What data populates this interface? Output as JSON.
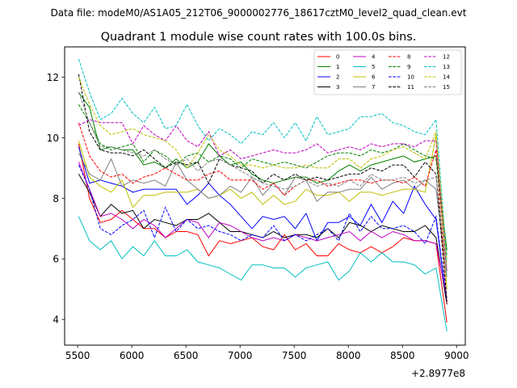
{
  "suptitle": "Data file: modeM0/AS1A05_212T06_9000002776_18617cztM0_level2_quad_clean.evt",
  "chart_data": {
    "type": "line",
    "title": "Quadrant 1 module wise count rates with 100.0s bins.",
    "xlabel": "",
    "ylabel": "",
    "x_offset_label": "+2.8977e8",
    "xlim": [
      5380,
      9080
    ],
    "ylim": [
      3.15,
      13.0
    ],
    "xticks": [
      5500,
      6000,
      6500,
      7000,
      7500,
      8000,
      8500,
      9000
    ],
    "yticks": [
      4,
      6,
      8,
      10,
      12
    ],
    "grid": false,
    "legend": {
      "placement": "top-right",
      "ncol": 4
    },
    "x": [
      5510,
      5610,
      5710,
      5810,
      5910,
      6010,
      6110,
      6210,
      6310,
      6410,
      6510,
      6610,
      6710,
      6810,
      6910,
      7010,
      7110,
      7210,
      7310,
      7410,
      7510,
      7610,
      7710,
      7810,
      7910,
      8010,
      8110,
      8210,
      8310,
      8410,
      8510,
      8610,
      8710,
      8810,
      8910
    ],
    "series": [
      {
        "name": "0",
        "color": "#ff0000",
        "dash": "solid",
        "values": [
          9.8,
          8.0,
          7.2,
          7.3,
          7.6,
          7.3,
          7.0,
          7.0,
          6.7,
          6.9,
          6.9,
          6.8,
          6.1,
          6.6,
          6.5,
          6.6,
          6.7,
          6.4,
          6.3,
          6.8,
          6.3,
          6.5,
          6.1,
          6.1,
          6.5,
          6.3,
          6.2,
          6.4,
          6.2,
          6.4,
          6.7,
          6.6,
          6.6,
          6.5,
          3.9
        ]
      },
      {
        "name": "1",
        "color": "#008000",
        "dash": "solid",
        "values": [
          11.5,
          11.0,
          9.6,
          9.7,
          9.6,
          9.6,
          9.1,
          9.2,
          9.0,
          9.3,
          9.0,
          9.2,
          9.8,
          9.4,
          9.1,
          9.2,
          8.8,
          8.6,
          8.5,
          8.6,
          8.7,
          8.7,
          8.5,
          8.6,
          8.9,
          9.1,
          8.9,
          9.1,
          9.2,
          9.3,
          9.4,
          9.2,
          9.3,
          9.4,
          6.3
        ]
      },
      {
        "name": "2",
        "color": "#0000ff",
        "dash": "solid",
        "values": [
          9.7,
          8.5,
          8.6,
          8.5,
          8.4,
          8.2,
          8.3,
          8.3,
          8.3,
          8.3,
          7.8,
          8.1,
          8.5,
          8.1,
          7.8,
          7.4,
          7.0,
          7.4,
          7.3,
          7.4,
          7.0,
          7.5,
          6.6,
          7.2,
          7.2,
          7.4,
          7.1,
          7.8,
          7.2,
          7.9,
          7.5,
          8.4,
          7.8,
          7.3,
          4.5
        ]
      },
      {
        "name": "3",
        "color": "#000000",
        "dash": "solid",
        "values": [
          8.8,
          8.2,
          7.4,
          7.8,
          7.5,
          7.6,
          7.0,
          7.3,
          7.2,
          7.1,
          7.3,
          7.3,
          7.5,
          7.2,
          6.9,
          6.9,
          6.8,
          6.7,
          6.9,
          6.7,
          6.8,
          6.8,
          6.7,
          7.0,
          6.7,
          7.2,
          7.1,
          6.9,
          7.1,
          7.0,
          6.9,
          6.9,
          7.1,
          6.7,
          4.5
        ]
      },
      {
        "name": "4",
        "color": "#bf00bf",
        "dash": "solid",
        "values": [
          9.2,
          8.3,
          7.4,
          7.5,
          7.3,
          7.0,
          7.3,
          7.1,
          6.7,
          7.0,
          7.3,
          7.2,
          6.7,
          7.2,
          7.1,
          6.9,
          6.7,
          6.6,
          6.7,
          6.6,
          6.8,
          6.7,
          6.6,
          6.7,
          6.8,
          6.9,
          6.6,
          6.9,
          6.7,
          6.9,
          6.8,
          6.6,
          6.6,
          6.5,
          4.7
        ]
      },
      {
        "name": "5",
        "color": "#00bfbf",
        "dash": "solid",
        "values": [
          7.4,
          6.6,
          6.3,
          6.6,
          6.0,
          6.4,
          6.1,
          6.6,
          6.1,
          6.1,
          6.3,
          5.9,
          5.8,
          5.7,
          5.5,
          5.3,
          5.8,
          5.8,
          5.7,
          5.7,
          5.4,
          5.7,
          5.8,
          5.9,
          5.3,
          5.6,
          6.2,
          5.9,
          6.2,
          5.9,
          5.9,
          5.8,
          5.5,
          5.7,
          3.6
        ]
      },
      {
        "name": "6",
        "color": "#bfbf00",
        "dash": "solid",
        "values": [
          9.9,
          8.7,
          8.4,
          8.2,
          8.6,
          7.7,
          8.1,
          8.1,
          8.2,
          8.2,
          8.2,
          8.3,
          8.0,
          8.1,
          8.3,
          8.0,
          8.2,
          7.8,
          8.1,
          7.8,
          7.9,
          8.3,
          8.1,
          8.1,
          8.2,
          7.9,
          8.2,
          8.2,
          8.1,
          8.2,
          8.3,
          8.3,
          8.2,
          10.1,
          5.0
        ]
      },
      {
        "name": "7",
        "color": "#808080",
        "dash": "solid",
        "values": [
          9.5,
          8.8,
          8.6,
          9.3,
          8.4,
          8.6,
          8.5,
          8.6,
          8.4,
          9.2,
          8.6,
          8.3,
          8.0,
          8.1,
          8.4,
          8.2,
          8.7,
          8.1,
          8.5,
          8.1,
          8.7,
          8.6,
          7.9,
          8.2,
          8.2,
          8.3,
          8.3,
          8.7,
          8.3,
          8.5,
          8.6,
          8.3,
          8.6,
          8.3,
          5.4
        ]
      },
      {
        "name": "8",
        "color": "#ff0000",
        "dash": "dashed",
        "values": [
          10.5,
          9.4,
          8.9,
          8.7,
          8.8,
          8.5,
          8.7,
          8.8,
          9.0,
          8.8,
          8.6,
          8.6,
          8.8,
          8.9,
          8.6,
          8.6,
          8.6,
          8.3,
          8.5,
          8.1,
          8.4,
          8.6,
          8.6,
          8.4,
          8.5,
          8.6,
          8.6,
          8.5,
          8.6,
          8.6,
          8.5,
          8.7,
          8.4,
          9.6,
          4.5
        ]
      },
      {
        "name": "9",
        "color": "#008000",
        "dash": "dashed",
        "values": [
          11.1,
          10.5,
          9.8,
          9.6,
          9.7,
          9.8,
          9.2,
          9.6,
          9.4,
          9.1,
          9.4,
          9.5,
          9.2,
          9.4,
          9.3,
          9.0,
          9.3,
          9.2,
          9.1,
          9.2,
          9.1,
          9.0,
          9.2,
          9.4,
          9.5,
          9.5,
          9.4,
          9.6,
          9.5,
          9.6,
          9.8,
          9.6,
          9.4,
          9.3,
          6.1
        ]
      },
      {
        "name": "10",
        "color": "#0000ff",
        "dash": "dashed",
        "values": [
          9.1,
          8.3,
          7.0,
          6.8,
          7.1,
          7.3,
          7.6,
          6.7,
          7.7,
          6.9,
          7.3,
          7.0,
          7.1,
          6.9,
          6.8,
          6.6,
          6.8,
          6.7,
          7.1,
          6.6,
          6.8,
          6.6,
          6.8,
          7.0,
          6.6,
          7.5,
          6.9,
          7.4,
          7.0,
          7.0,
          7.1,
          6.9,
          6.5,
          7.4,
          4.6
        ]
      },
      {
        "name": "11",
        "color": "#000000",
        "dash": "dashed",
        "values": [
          12.1,
          10.2,
          9.6,
          9.5,
          9.5,
          9.4,
          9.6,
          9.3,
          9.0,
          9.2,
          9.1,
          9.2,
          8.5,
          9.3,
          9.1,
          9.0,
          8.9,
          8.5,
          8.8,
          8.6,
          8.8,
          8.6,
          8.7,
          8.6,
          8.7,
          8.8,
          8.8,
          9.0,
          8.9,
          9.1,
          9.1,
          8.7,
          9.2,
          8.8,
          4.6
        ]
      },
      {
        "name": "12",
        "color": "#bf00bf",
        "dash": "dashed",
        "values": [
          10.4,
          10.6,
          10.5,
          10.5,
          10.5,
          9.8,
          10.4,
          10.1,
          9.9,
          10.4,
          9.9,
          9.7,
          10.2,
          9.4,
          9.6,
          9.3,
          9.4,
          9.5,
          9.6,
          9.5,
          9.5,
          9.6,
          9.8,
          9.5,
          9.6,
          9.7,
          9.6,
          9.8,
          9.7,
          9.8,
          9.8,
          9.7,
          9.9,
          9.9,
          5.6
        ]
      },
      {
        "name": "13",
        "color": "#00bfbf",
        "dash": "dashed",
        "values": [
          12.6,
          11.5,
          10.6,
          10.8,
          11.3,
          10.8,
          10.5,
          11.0,
          10.3,
          10.4,
          11.1,
          10.4,
          9.9,
          10.3,
          10.1,
          9.8,
          10.2,
          10.1,
          10.5,
          10.0,
          10.5,
          9.9,
          10.7,
          10.1,
          10.2,
          10.3,
          10.7,
          10.7,
          10.8,
          10.5,
          10.4,
          10.2,
          10.1,
          10.6,
          5.9
        ]
      },
      {
        "name": "14",
        "color": "#bfbf00",
        "dash": "dashed",
        "values": [
          12.0,
          11.1,
          10.4,
          10.1,
          10.2,
          10.3,
          10.1,
          10.0,
          9.9,
          9.6,
          9.0,
          9.5,
          10.1,
          9.6,
          9.4,
          9.1,
          9.1,
          9.0,
          9.1,
          9.0,
          9.0,
          9.1,
          9.0,
          9.0,
          9.3,
          9.3,
          9.0,
          9.3,
          9.4,
          9.6,
          9.7,
          9.5,
          9.3,
          10.2,
          5.8
        ]
      },
      {
        "name": "15",
        "color": "#808080",
        "dash": "dashed",
        "values": [
          11.5,
          10.5,
          9.7,
          9.7,
          9.6,
          9.5,
          9.4,
          9.6,
          9.3,
          9.1,
          9.3,
          8.9,
          9.2,
          9.3,
          9.1,
          8.9,
          8.7,
          8.5,
          8.4,
          8.3,
          8.4,
          8.6,
          8.4,
          8.5,
          8.4,
          8.6,
          8.4,
          8.8,
          8.6,
          8.6,
          8.7,
          8.5,
          8.6,
          8.7,
          5.6
        ]
      }
    ]
  }
}
